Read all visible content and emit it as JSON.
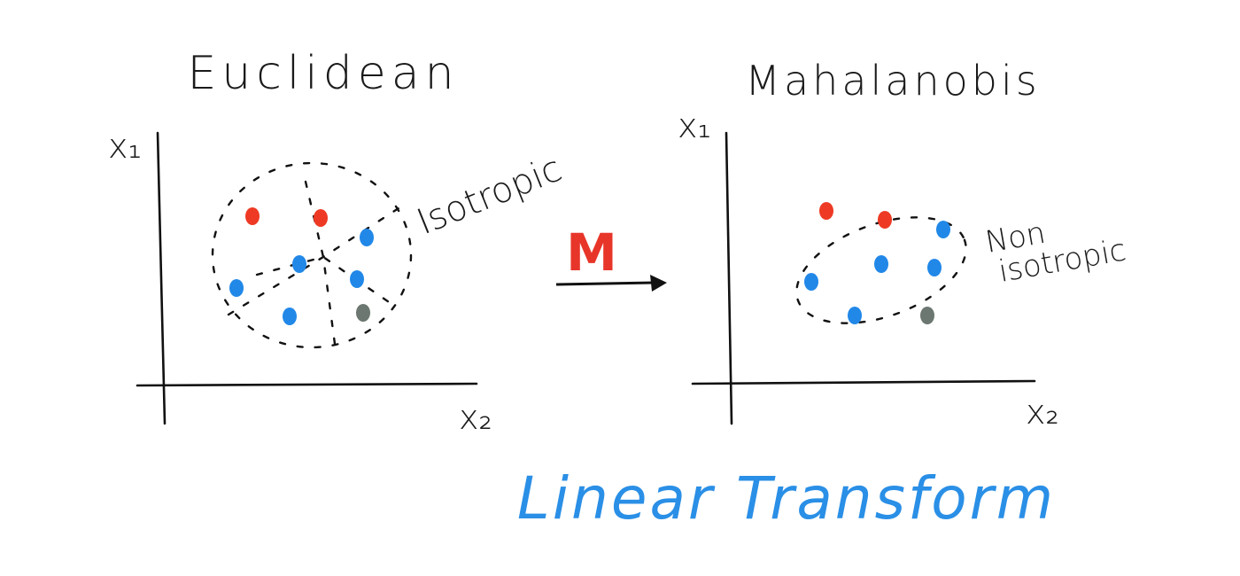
{
  "left_panel": {
    "title": "Euclidean",
    "y_axis_label": "x₁",
    "x_axis_label": "x₂",
    "annotation": "Isotropic"
  },
  "right_panel": {
    "title": "Mahalanobis",
    "y_axis_label": "x₁",
    "x_axis_label": "x₂",
    "annotation_line1": "Non",
    "annotation_line2": "isotropic"
  },
  "transform": {
    "symbol": "M",
    "caption": "Linear Transform"
  },
  "colors": {
    "red_point": "#ee3a24",
    "blue_point": "#2188e8",
    "gray_point": "#6b7770",
    "transform_symbol": "#e8352a",
    "caption": "#2a8fe6"
  }
}
